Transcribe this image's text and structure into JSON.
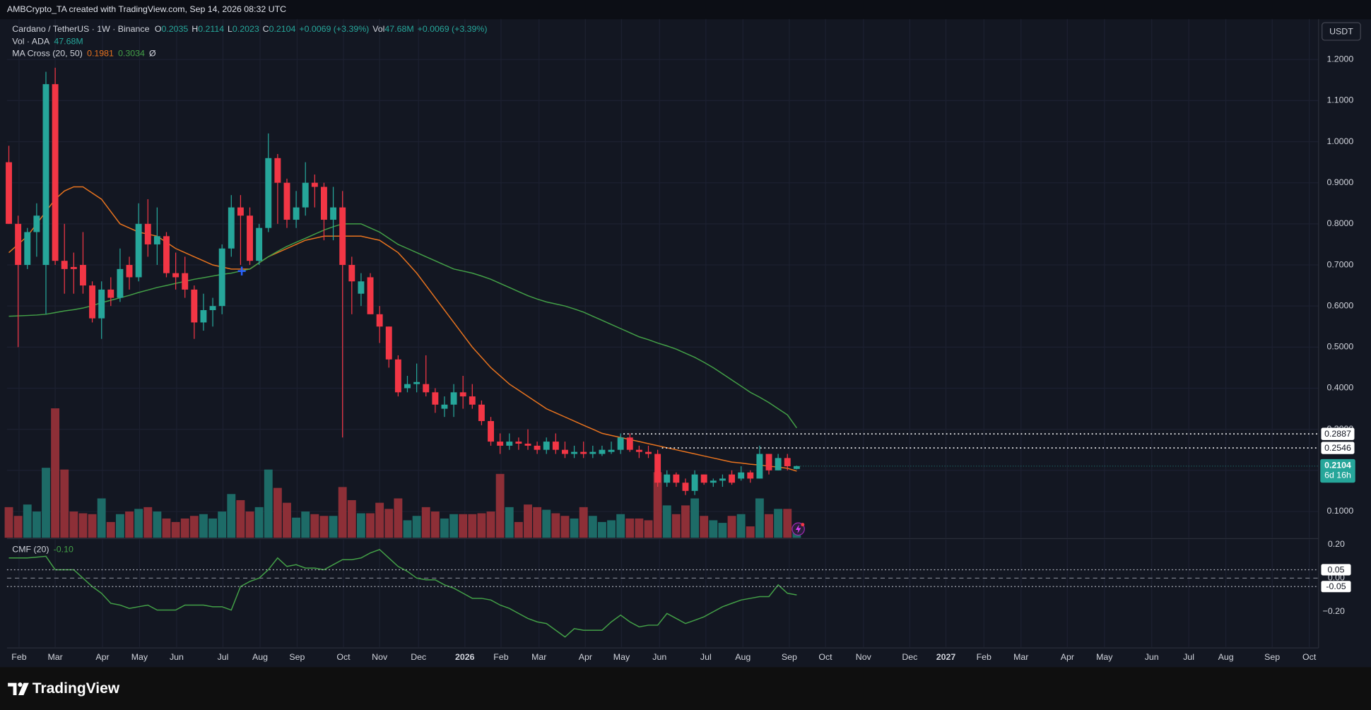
{
  "header": {
    "attribution": "AMBCrypto_TA created with TradingView.com, Sep 14, 2026 08:32 UTC",
    "currency": "USDT",
    "brand": "TradingView"
  },
  "chart_data": [
    {
      "type": "candlestick",
      "legend": {
        "symbol": "Cardano / TetherUS · 1W · Binance",
        "ohlc": [
          {
            "key": "O",
            "value": "0.2035"
          },
          {
            "key": "H",
            "value": "0.2114"
          },
          {
            "key": "L",
            "value": "0.2023"
          },
          {
            "key": "C",
            "value": "0.2104"
          }
        ],
        "change": "+0.0069 (+3.39%)",
        "vol_key": "Vol",
        "vol_value": "47.68M",
        "vol_change": "+0.0069 (+3.39%)",
        "vol_title": "Vol · ADA",
        "vol_last": "47.68M",
        "ma_title": "MA Cross (20, 50)",
        "ma_fast": "0.1981",
        "ma_slow": "0.3034",
        "ma_extra": "Ø"
      },
      "up_color": "#26a69a",
      "down_color": "#f23645",
      "open": [
        0.95,
        0.8,
        0.7,
        0.78,
        0.7,
        1.14,
        0.71,
        0.695,
        0.7,
        0.65,
        0.57,
        0.64,
        0.62,
        0.7,
        0.67,
        0.8,
        0.75,
        0.77,
        0.68,
        0.68,
        0.64,
        0.56,
        0.59,
        0.6,
        0.74,
        0.84,
        0.82,
        0.71,
        0.79,
        0.96,
        0.9,
        0.81,
        0.84,
        0.9,
        0.89,
        0.81,
        0.84,
        0.7,
        0.63,
        0.67,
        0.58,
        0.55,
        0.47,
        0.4,
        0.41,
        0.41,
        0.39,
        0.35,
        0.36,
        0.39,
        0.38,
        0.36,
        0.32,
        0.27,
        0.26,
        0.27,
        0.265,
        0.26,
        0.25,
        0.27,
        0.25,
        0.24,
        0.245,
        0.24,
        0.24,
        0.245,
        0.25,
        0.28,
        0.25,
        0.245,
        0.24,
        0.17,
        0.19,
        0.17,
        0.15,
        0.19,
        0.17,
        0.175,
        0.19,
        0.18,
        0.195,
        0.18,
        0.24,
        0.2,
        0.23,
        0.2035
      ],
      "high": [
        0.99,
        0.82,
        0.79,
        0.85,
        1.17,
        1.18,
        0.8,
        0.73,
        0.78,
        0.66,
        0.66,
        0.67,
        0.74,
        0.72,
        0.85,
        0.86,
        0.84,
        0.78,
        0.73,
        0.72,
        0.65,
        0.63,
        0.62,
        0.75,
        0.87,
        0.87,
        0.84,
        0.8,
        1.02,
        0.97,
        0.91,
        0.88,
        0.95,
        0.92,
        0.9,
        0.89,
        0.88,
        0.72,
        0.68,
        0.68,
        0.6,
        0.55,
        0.48,
        0.43,
        0.46,
        0.48,
        0.4,
        0.38,
        0.41,
        0.43,
        0.41,
        0.37,
        0.33,
        0.29,
        0.29,
        0.28,
        0.3,
        0.27,
        0.28,
        0.29,
        0.27,
        0.26,
        0.27,
        0.26,
        0.26,
        0.27,
        0.29,
        0.29,
        0.26,
        0.26,
        0.25,
        0.2,
        0.195,
        0.18,
        0.2,
        0.19,
        0.18,
        0.19,
        0.2,
        0.21,
        0.2,
        0.26,
        0.24,
        0.24,
        0.24,
        0.2114
      ],
      "low": [
        0.8,
        0.5,
        0.69,
        0.72,
        0.58,
        0.7,
        0.63,
        0.63,
        0.63,
        0.56,
        0.52,
        0.6,
        0.61,
        0.64,
        0.66,
        0.72,
        0.7,
        0.67,
        0.64,
        0.62,
        0.52,
        0.54,
        0.55,
        0.58,
        0.72,
        0.7,
        0.7,
        0.7,
        0.78,
        0.8,
        0.79,
        0.79,
        0.82,
        0.84,
        0.76,
        0.76,
        0.28,
        0.58,
        0.6,
        0.58,
        0.51,
        0.45,
        0.38,
        0.39,
        0.39,
        0.38,
        0.34,
        0.33,
        0.33,
        0.35,
        0.35,
        0.31,
        0.26,
        0.24,
        0.25,
        0.25,
        0.25,
        0.24,
        0.24,
        0.24,
        0.23,
        0.23,
        0.23,
        0.23,
        0.235,
        0.24,
        0.24,
        0.245,
        0.23,
        0.23,
        0.16,
        0.16,
        0.16,
        0.14,
        0.14,
        0.165,
        0.16,
        0.16,
        0.165,
        0.175,
        0.17,
        0.18,
        0.19,
        0.2,
        0.2,
        0.2023
      ],
      "close": [
        0.8,
        0.7,
        0.78,
        0.82,
        1.14,
        0.71,
        0.69,
        0.69,
        0.65,
        0.57,
        0.64,
        0.62,
        0.69,
        0.67,
        0.8,
        0.75,
        0.77,
        0.68,
        0.67,
        0.64,
        0.56,
        0.59,
        0.6,
        0.74,
        0.84,
        0.82,
        0.71,
        0.79,
        0.96,
        0.9,
        0.81,
        0.84,
        0.9,
        0.89,
        0.81,
        0.84,
        0.7,
        0.66,
        0.66,
        0.58,
        0.55,
        0.47,
        0.39,
        0.41,
        0.415,
        0.39,
        0.36,
        0.36,
        0.39,
        0.38,
        0.36,
        0.32,
        0.27,
        0.26,
        0.27,
        0.265,
        0.26,
        0.25,
        0.27,
        0.25,
        0.24,
        0.245,
        0.24,
        0.245,
        0.25,
        0.25,
        0.28,
        0.25,
        0.245,
        0.24,
        0.17,
        0.19,
        0.17,
        0.15,
        0.19,
        0.17,
        0.175,
        0.18,
        0.17,
        0.195,
        0.18,
        0.24,
        0.2,
        0.23,
        0.21,
        0.2104
      ],
      "series": [
        {
          "name": "MA 20",
          "color": "#e8731e",
          "values": [
            0.73,
            0.75,
            0.77,
            0.8,
            0.83,
            0.86,
            0.88,
            0.89,
            0.89,
            0.875,
            0.86,
            0.83,
            0.8,
            0.79,
            0.78,
            0.775,
            0.77,
            0.755,
            0.74,
            0.73,
            0.72,
            0.71,
            0.7,
            0.695,
            0.69,
            0.69,
            0.69,
            0.705,
            0.72,
            0.73,
            0.74,
            0.75,
            0.76,
            0.765,
            0.77,
            0.77,
            0.77,
            0.77,
            0.77,
            0.765,
            0.76,
            0.745,
            0.73,
            0.705,
            0.68,
            0.65,
            0.62,
            0.59,
            0.56,
            0.53,
            0.5,
            0.475,
            0.45,
            0.43,
            0.41,
            0.395,
            0.38,
            0.365,
            0.35,
            0.34,
            0.33,
            0.32,
            0.31,
            0.3,
            0.29,
            0.285,
            0.28,
            0.275,
            0.27,
            0.265,
            0.26,
            0.255,
            0.25,
            0.245,
            0.24,
            0.235,
            0.23,
            0.225,
            0.22,
            0.218,
            0.215,
            0.213,
            0.21,
            0.208,
            0.205,
            0.1981
          ]
        },
        {
          "name": "MA 50",
          "color": "#43a047",
          "values": [
            0.575,
            0.576,
            0.577,
            0.578,
            0.58,
            0.584,
            0.588,
            0.591,
            0.595,
            0.601,
            0.608,
            0.614,
            0.62,
            0.626,
            0.633,
            0.639,
            0.645,
            0.65,
            0.655,
            0.66,
            0.665,
            0.669,
            0.673,
            0.677,
            0.68,
            0.685,
            0.69,
            0.705,
            0.72,
            0.733,
            0.745,
            0.755,
            0.765,
            0.775,
            0.785,
            0.793,
            0.8,
            0.8,
            0.8,
            0.79,
            0.78,
            0.765,
            0.75,
            0.74,
            0.73,
            0.72,
            0.71,
            0.7,
            0.69,
            0.685,
            0.68,
            0.673,
            0.665,
            0.655,
            0.645,
            0.635,
            0.625,
            0.617,
            0.61,
            0.605,
            0.6,
            0.593,
            0.585,
            0.575,
            0.565,
            0.555,
            0.545,
            0.535,
            0.525,
            0.518,
            0.51,
            0.503,
            0.495,
            0.485,
            0.475,
            0.463,
            0.45,
            0.435,
            0.42,
            0.405,
            0.39,
            0.378,
            0.365,
            0.35,
            0.335,
            0.3034
          ]
        }
      ],
      "volume": {
        "up_color": "#1d6b67",
        "down_color": "#8d2f37",
        "ylim": [
          0,
          2965
        ],
        "values": [
          175,
          125,
          190,
          150,
          400,
          740,
          390,
          150,
          140,
          135,
          225,
          90,
          135,
          150,
          165,
          175,
          150,
          110,
          90,
          110,
          125,
          135,
          110,
          150,
          250,
          215,
          150,
          175,
          390,
          285,
          200,
          115,
          150,
          135,
          125,
          125,
          290,
          215,
          140,
          140,
          200,
          165,
          225,
          100,
          125,
          175,
          150,
          110,
          135,
          135,
          135,
          140,
          150,
          365,
          175,
          90,
          190,
          175,
          160,
          140,
          125,
          110,
          175,
          125,
          90,
          100,
          135,
          110,
          110,
          100,
          375,
          185,
          135,
          185,
          225,
          125,
          100,
          85,
          125,
          135,
          65,
          225,
          135,
          165,
          165,
          47.68
        ]
      },
      "levels": [
        0.2887,
        0.2546
      ],
      "countdown": "6d 16h",
      "ylim": [
        0.036,
        1.298
      ],
      "yticks": [
        {
          "value": 0.1,
          "label": "0.1000"
        },
        {
          "value": 0.2,
          "label": "0.2000"
        },
        {
          "value": 0.3,
          "label": "0.3000"
        },
        {
          "value": 0.4,
          "label": "0.4000"
        },
        {
          "value": 0.5,
          "label": "0.5000"
        },
        {
          "value": 0.6,
          "label": "0.6000"
        },
        {
          "value": 0.7,
          "label": "0.7000"
        },
        {
          "value": 0.8,
          "label": "0.8000"
        },
        {
          "value": 0.9,
          "label": "0.9000"
        },
        {
          "value": 1,
          "label": "1.0000"
        },
        {
          "value": 1.1,
          "label": "1.1000"
        },
        {
          "value": 1.2,
          "label": "1.2000"
        }
      ],
      "xlim": [
        -0.2,
        141.3
      ],
      "xticks": [
        {
          "value": 1.1,
          "label": "Feb"
        },
        {
          "value": 5,
          "label": "Mar"
        },
        {
          "value": 10.1,
          "label": "Apr"
        },
        {
          "value": 14.1,
          "label": "May"
        },
        {
          "value": 18.1,
          "label": "Jun"
        },
        {
          "value": 23.1,
          "label": "Jul"
        },
        {
          "value": 27.1,
          "label": "Aug"
        },
        {
          "value": 31.1,
          "label": "Sep"
        },
        {
          "value": 36.1,
          "label": "Oct"
        },
        {
          "value": 40,
          "label": "Nov"
        },
        {
          "value": 44.2,
          "label": "Dec"
        },
        {
          "value": 49.2,
          "label": "2026"
        },
        {
          "value": 53.1,
          "label": "Feb"
        },
        {
          "value": 57.2,
          "label": "Mar"
        },
        {
          "value": 62.2,
          "label": "Apr"
        },
        {
          "value": 66.1,
          "label": "May"
        },
        {
          "value": 70.2,
          "label": "Jun"
        },
        {
          "value": 75.2,
          "label": "Jul"
        },
        {
          "value": 79.2,
          "label": "Aug"
        },
        {
          "value": 84.2,
          "label": "Sep"
        },
        {
          "value": 88.1,
          "label": "Oct"
        },
        {
          "value": 92.2,
          "label": "Nov"
        },
        {
          "value": 97.2,
          "label": "Dec"
        },
        {
          "value": 101.1,
          "label": "2027"
        },
        {
          "value": 105.2,
          "label": "Feb"
        },
        {
          "value": 109.2,
          "label": "Mar"
        },
        {
          "value": 114.2,
          "label": "Apr"
        },
        {
          "value": 118.2,
          "label": "May"
        },
        {
          "value": 123.3,
          "label": "Jun"
        },
        {
          "value": 127.3,
          "label": "Jul"
        },
        {
          "value": 131.3,
          "label": "Aug"
        },
        {
          "value": 136.3,
          "label": "Sep"
        },
        {
          "value": 140.3,
          "label": "Oct"
        }
      ],
      "grid": true
    },
    {
      "type": "line",
      "title": "CMF (20)",
      "last_label": "-0.10",
      "color": "#43a047",
      "values": [
        0.12,
        0.12,
        0.12,
        0.125,
        0.13,
        0.05,
        0.05,
        0.05,
        0.0,
        -0.05,
        -0.09,
        -0.15,
        -0.16,
        -0.18,
        -0.17,
        -0.16,
        -0.19,
        -0.19,
        -0.19,
        -0.16,
        -0.16,
        -0.16,
        -0.17,
        -0.17,
        -0.19,
        -0.05,
        -0.02,
        0.0,
        0.05,
        0.12,
        0.07,
        0.08,
        0.06,
        0.06,
        0.05,
        0.08,
        0.11,
        0.11,
        0.12,
        0.15,
        0.17,
        0.12,
        0.07,
        0.04,
        0.0,
        -0.01,
        -0.01,
        -0.04,
        -0.06,
        -0.09,
        -0.12,
        -0.12,
        -0.13,
        -0.16,
        -0.18,
        -0.21,
        -0.24,
        -0.26,
        -0.27,
        -0.31,
        -0.35,
        -0.3,
        -0.31,
        -0.31,
        -0.31,
        -0.26,
        -0.22,
        -0.26,
        -0.29,
        -0.28,
        -0.28,
        -0.21,
        -0.24,
        -0.27,
        -0.25,
        -0.23,
        -0.2,
        -0.17,
        -0.15,
        -0.13,
        -0.12,
        -0.11,
        -0.11,
        -0.04,
        -0.09,
        -0.1
      ],
      "levels": [
        0.05,
        -0.05
      ],
      "ylim": [
        -0.41,
        0.23
      ],
      "yticks": [
        {
          "value": 0.2,
          "label": "0.20"
        },
        {
          "value": 0,
          "label": "0.00"
        },
        {
          "value": -0.2,
          "label": "−0.20"
        }
      ]
    }
  ]
}
